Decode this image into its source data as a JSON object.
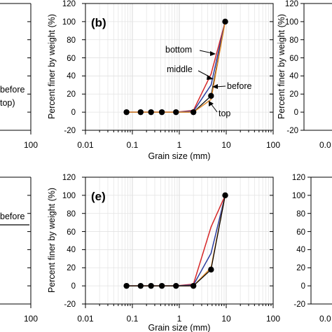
{
  "chart_data": [
    {
      "id": "left_top",
      "type": "line",
      "partial": true,
      "x_tick_labels": [
        "100"
      ],
      "annotations": [
        "before",
        "top)"
      ]
    },
    {
      "id": "b",
      "type": "line",
      "panel_label": "(b)",
      "xscale": "log",
      "xlim": [
        0.01,
        100
      ],
      "ylim": [
        -20,
        120
      ],
      "xlabel": "Grain size (mm)",
      "ylabel": "Percent finer by weight (%)",
      "x_ticks": [
        "0.01",
        "0.1",
        "1",
        "10",
        "100"
      ],
      "y_ticks": [
        "-20",
        "0",
        "20",
        "40",
        "60",
        "80",
        "100",
        "120"
      ],
      "grid": true,
      "legend": "annotations",
      "series": [
        {
          "name": "bottom",
          "color": "#d62728",
          "x": [
            0.075,
            0.15,
            0.25,
            0.425,
            0.85,
            2,
            4.75,
            9.5
          ],
          "y": [
            0,
            0,
            0,
            0,
            0,
            2,
            42,
            100
          ]
        },
        {
          "name": "middle",
          "color": "#2c3e9f",
          "x": [
            0.075,
            0.15,
            0.25,
            0.425,
            0.85,
            2,
            4.75,
            9.5
          ],
          "y": [
            0,
            0,
            0,
            0,
            0,
            1,
            30,
            100
          ]
        },
        {
          "name": "before",
          "color": "#000000",
          "marker": "circle",
          "x": [
            0.075,
            0.15,
            0.25,
            0.425,
            0.85,
            2,
            4.75,
            9.5
          ],
          "y": [
            0,
            0,
            0,
            0,
            0,
            0,
            18,
            100
          ]
        },
        {
          "name": "top",
          "color": "#e08a2c",
          "x": [
            0.075,
            0.15,
            0.25,
            0.425,
            0.85,
            2,
            4.75,
            9.5
          ],
          "y": [
            0,
            0,
            0,
            0,
            0,
            0,
            14,
            100
          ]
        }
      ]
    },
    {
      "id": "right_top",
      "type": "line",
      "partial": true,
      "ylabel": "Percent finer by weight (%)",
      "y_ticks": [
        "-20",
        "0",
        "20",
        "40",
        "60",
        "80",
        "100",
        "120"
      ],
      "x_tick_labels": [
        "0.0"
      ]
    },
    {
      "id": "left_bottom",
      "type": "line",
      "partial": true,
      "x_tick_labels": [
        "100"
      ],
      "annotations": [
        "before"
      ]
    },
    {
      "id": "e",
      "type": "line",
      "panel_label": "(e)",
      "xscale": "log",
      "xlim": [
        0.01,
        100
      ],
      "ylim": [
        -20,
        120
      ],
      "xlabel": "Grain size (mm)",
      "ylabel": "Percent finer by weight (%)",
      "x_ticks": [
        "0.01",
        "0.1",
        "1",
        "10",
        "100"
      ],
      "y_ticks": [
        "-20",
        "0",
        "20",
        "40",
        "60",
        "80",
        "100",
        "120"
      ],
      "grid": true,
      "series": [
        {
          "color": "#d62728",
          "x": [
            0.075,
            0.15,
            0.25,
            0.425,
            0.85,
            2,
            4.75,
            9.5
          ],
          "y": [
            0,
            0,
            0,
            0,
            0,
            2,
            65,
            100
          ]
        },
        {
          "color": "#2c3e9f",
          "x": [
            0.075,
            0.15,
            0.25,
            0.425,
            0.85,
            2,
            4.75,
            9.5
          ],
          "y": [
            0,
            0,
            0,
            0,
            0,
            1,
            36,
            100
          ]
        },
        {
          "color": "#e08a2c",
          "x": [
            0.075,
            0.15,
            0.25,
            0.425,
            0.85,
            2,
            4.75,
            9.5
          ],
          "y": [
            0,
            0,
            0,
            0,
            0,
            0,
            20,
            100
          ]
        },
        {
          "color": "#000000",
          "marker": "circle",
          "x": [
            0.075,
            0.15,
            0.25,
            0.425,
            0.85,
            2,
            4.75,
            9.5
          ],
          "y": [
            0,
            0,
            0,
            0,
            0,
            0,
            18,
            100
          ]
        }
      ]
    },
    {
      "id": "right_bottom",
      "type": "line",
      "partial": true,
      "y_ticks": [
        "-20",
        "0",
        "20",
        "40",
        "60",
        "80",
        "100",
        "120"
      ],
      "x_tick_labels": [
        "0.0"
      ]
    }
  ]
}
